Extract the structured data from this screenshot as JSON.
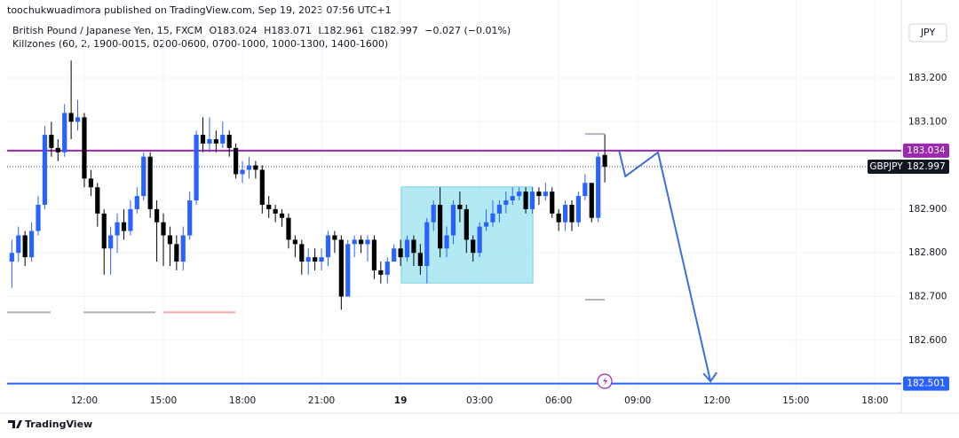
{
  "header": {
    "published": "toochukwuadimora published on TradingView.com, Sep 19, 2023 07:56 UTC+1",
    "indicator": "Killzones (60, 2, 1900-0015, 0200-0600, 0700-1000, 1000-1300, 1400-1600)",
    "currency_button": "JPY",
    "brand": "TradingView"
  },
  "chart_data": {
    "type": "candlestick",
    "title": "British Pound / Japanese Yen, 15, FXCM",
    "ohlc_prefixes": [
      "O",
      "H",
      "L",
      "C"
    ],
    "change": "−0.027 (−0.01%)",
    "symbol_tag": "GBPJPY",
    "up_color": "#2962ff",
    "down_color": "#000000",
    "x": [
      9.25,
      9.5,
      9.75,
      10,
      10.25,
      10.5,
      10.75,
      11,
      11.25,
      11.5,
      11.75,
      12,
      12.25,
      12.5,
      12.75,
      13,
      13.25,
      13.5,
      13.75,
      14,
      14.25,
      14.5,
      14.75,
      15,
      15.25,
      15.5,
      15.75,
      16,
      16.25,
      16.5,
      16.75,
      17,
      17.25,
      17.5,
      17.75,
      18,
      18.25,
      18.5,
      18.75,
      19,
      19.25,
      19.5,
      19.75,
      20,
      20.25,
      20.5,
      20.75,
      21,
      21.25,
      21.5,
      21.75,
      22,
      22.25,
      22.5,
      22.75,
      23,
      23.25,
      23.5,
      23.75,
      24,
      24.25,
      24.5,
      24.75,
      25,
      25.25,
      25.5,
      25.75,
      26,
      26.25,
      26.5,
      26.75,
      27,
      27.25,
      27.5,
      27.75,
      28,
      28.25,
      28.5,
      28.75,
      29,
      29.25,
      29.5,
      29.75,
      30,
      30.25,
      30.5,
      30.75,
      31,
      31.25,
      31.5,
      31.75
    ],
    "open": [
      182.78,
      182.8,
      182.84,
      182.79,
      182.85,
      182.91,
      183.07,
      183.04,
      183.03,
      183.12,
      183.1,
      183.11,
      182.97,
      182.95,
      182.89,
      182.81,
      182.84,
      182.87,
      182.85,
      182.9,
      182.93,
      183.02,
      182.9,
      182.87,
      182.84,
      182.82,
      182.78,
      182.84,
      182.92,
      183.07,
      183.05,
      183.06,
      183.05,
      183.07,
      183.04,
      182.98,
      182.99,
      183.0,
      182.99,
      182.91,
      182.9,
      182.89,
      182.88,
      182.83,
      182.82,
      182.78,
      182.79,
      182.78,
      182.79,
      182.84,
      182.83,
      182.7,
      182.82,
      182.83,
      182.82,
      182.83,
      182.76,
      182.75,
      182.78,
      182.81,
      182.79,
      182.83,
      182.8,
      182.77,
      182.87,
      182.91,
      182.81,
      182.84,
      182.91,
      182.9,
      182.83,
      182.8,
      182.86,
      182.87,
      182.89,
      182.91,
      182.92,
      182.93,
      182.94,
      182.9,
      182.94,
      182.93,
      182.94,
      182.89,
      182.87,
      182.91,
      182.87,
      182.93,
      182.96,
      182.88,
      183.024
    ],
    "high": [
      182.83,
      182.86,
      182.85,
      182.87,
      182.93,
      183.09,
      183.1,
      183.06,
      183.14,
      183.24,
      183.15,
      183.12,
      182.99,
      182.96,
      182.9,
      182.86,
      182.89,
      182.9,
      182.92,
      182.95,
      183.03,
      183.03,
      182.92,
      182.89,
      182.86,
      182.84,
      182.86,
      182.94,
      183.08,
      183.11,
      183.11,
      183.08,
      183.1,
      183.08,
      183.05,
      183.01,
      183.02,
      183.01,
      183.0,
      182.93,
      182.91,
      182.9,
      182.89,
      182.84,
      182.83,
      182.81,
      182.81,
      182.81,
      182.85,
      182.85,
      182.84,
      182.83,
      182.84,
      182.84,
      182.84,
      182.84,
      182.78,
      182.79,
      182.82,
      182.83,
      182.84,
      182.84,
      182.82,
      182.88,
      182.92,
      182.95,
      182.86,
      182.92,
      182.94,
      182.91,
      182.84,
      182.87,
      182.9,
      182.92,
      182.92,
      182.94,
      182.95,
      182.95,
      182.95,
      182.95,
      182.95,
      182.96,
      182.95,
      182.9,
      182.92,
      182.92,
      182.94,
      182.98,
      182.96,
      183.03,
      183.071
    ],
    "low": [
      182.72,
      182.78,
      182.77,
      182.78,
      182.84,
      182.9,
      183.02,
      183.01,
      183.02,
      183.06,
      183.08,
      182.95,
      182.93,
      182.86,
      182.75,
      182.75,
      182.8,
      182.83,
      182.84,
      182.89,
      182.92,
      182.88,
      182.78,
      182.77,
      182.77,
      182.76,
      182.76,
      182.83,
      182.91,
      183.03,
      183.03,
      183.03,
      183.04,
      183.02,
      182.97,
      182.96,
      182.97,
      182.97,
      182.89,
      182.88,
      182.87,
      182.86,
      182.81,
      182.79,
      182.75,
      182.75,
      182.76,
      182.76,
      182.77,
      182.8,
      182.67,
      182.7,
      182.79,
      182.8,
      182.78,
      182.74,
      182.73,
      182.73,
      182.78,
      182.77,
      182.78,
      182.77,
      182.75,
      182.73,
      182.85,
      182.79,
      182.79,
      182.82,
      182.87,
      182.8,
      182.78,
      182.79,
      182.85,
      182.86,
      182.87,
      182.89,
      182.91,
      182.92,
      182.89,
      182.89,
      182.91,
      182.92,
      182.88,
      182.85,
      182.85,
      182.85,
      182.86,
      182.92,
      182.87,
      182.87,
      182.961
    ],
    "close": [
      182.8,
      182.84,
      182.79,
      182.85,
      182.91,
      183.07,
      183.04,
      183.03,
      183.12,
      183.1,
      183.11,
      182.97,
      182.95,
      182.89,
      182.81,
      182.84,
      182.87,
      182.85,
      182.9,
      182.93,
      183.02,
      182.9,
      182.87,
      182.84,
      182.82,
      182.78,
      182.84,
      182.92,
      183.07,
      183.05,
      183.06,
      183.05,
      183.07,
      183.04,
      182.98,
      182.99,
      183.0,
      182.99,
      182.91,
      182.9,
      182.89,
      182.88,
      182.83,
      182.82,
      182.78,
      182.79,
      182.78,
      182.79,
      182.84,
      182.83,
      182.7,
      182.82,
      182.83,
      182.82,
      182.83,
      182.76,
      182.75,
      182.78,
      182.81,
      182.79,
      182.83,
      182.8,
      182.77,
      182.87,
      182.91,
      182.81,
      182.84,
      182.91,
      182.9,
      182.83,
      182.8,
      182.86,
      182.87,
      182.89,
      182.91,
      182.92,
      182.93,
      182.94,
      182.9,
      182.94,
      182.93,
      182.94,
      182.89,
      182.87,
      182.91,
      182.87,
      182.93,
      182.96,
      182.88,
      183.02,
      182.997
    ],
    "xlim": [
      9.07,
      43.0
    ],
    "xticks": [
      {
        "value": 12,
        "label": "12:00"
      },
      {
        "value": 15,
        "label": "15:00"
      },
      {
        "value": 18,
        "label": "18:00"
      },
      {
        "value": 21,
        "label": "21:00"
      },
      {
        "value": 24,
        "label": "19"
      },
      {
        "value": 27,
        "label": "03:00"
      },
      {
        "value": 30,
        "label": "06:00"
      },
      {
        "value": 33,
        "label": "09:00"
      },
      {
        "value": 36,
        "label": "12:00"
      },
      {
        "value": 39,
        "label": "15:00"
      },
      {
        "value": 42,
        "label": "18:00"
      }
    ],
    "ylim": [
      182.486,
      183.348
    ],
    "yticks": [
      {
        "value": 182.6,
        "label": "182.600"
      },
      {
        "value": 182.7,
        "label": "182.700"
      },
      {
        "value": 182.8,
        "label": "182.800"
      },
      {
        "value": 182.9,
        "label": "182.900"
      },
      {
        "value": 183.0,
        "label": "183.000"
      },
      {
        "value": 183.1,
        "label": "183.100"
      },
      {
        "value": 183.2,
        "label": "183.200"
      }
    ],
    "grid": true,
    "horizontal_lines": [
      {
        "value": 183.034,
        "color": "#9c27b0"
      },
      {
        "value": 182.501,
        "color": "#2962ff"
      }
    ],
    "zone_lines": [
      {
        "x": [
          9.07,
          10.72
        ],
        "y": 182.664,
        "color": "#b2b5be"
      },
      {
        "x": [
          11.97,
          14.7
        ],
        "y": 182.664,
        "color": "#b2b5be"
      },
      {
        "x": [
          15.0,
          17.73
        ],
        "y": 182.664,
        "color": "#f7a8a8"
      },
      {
        "x": [
          31.0,
          31.75
        ],
        "y": 183.072,
        "color": "#b2b5be"
      },
      {
        "x": [
          31.0,
          31.75
        ],
        "y": 182.693,
        "color": "#b2b5be"
      }
    ],
    "box": {
      "x": [
        24.03,
        29.02
      ],
      "y": [
        182.731,
        182.951
      ],
      "color": "#9fe3ef"
    },
    "projection": {
      "x": [
        32.29,
        32.53,
        33.77,
        35.76
      ],
      "y": [
        183.034,
        182.975,
        183.03,
        182.506
      ],
      "color": "#3a6fe0"
    }
  }
}
